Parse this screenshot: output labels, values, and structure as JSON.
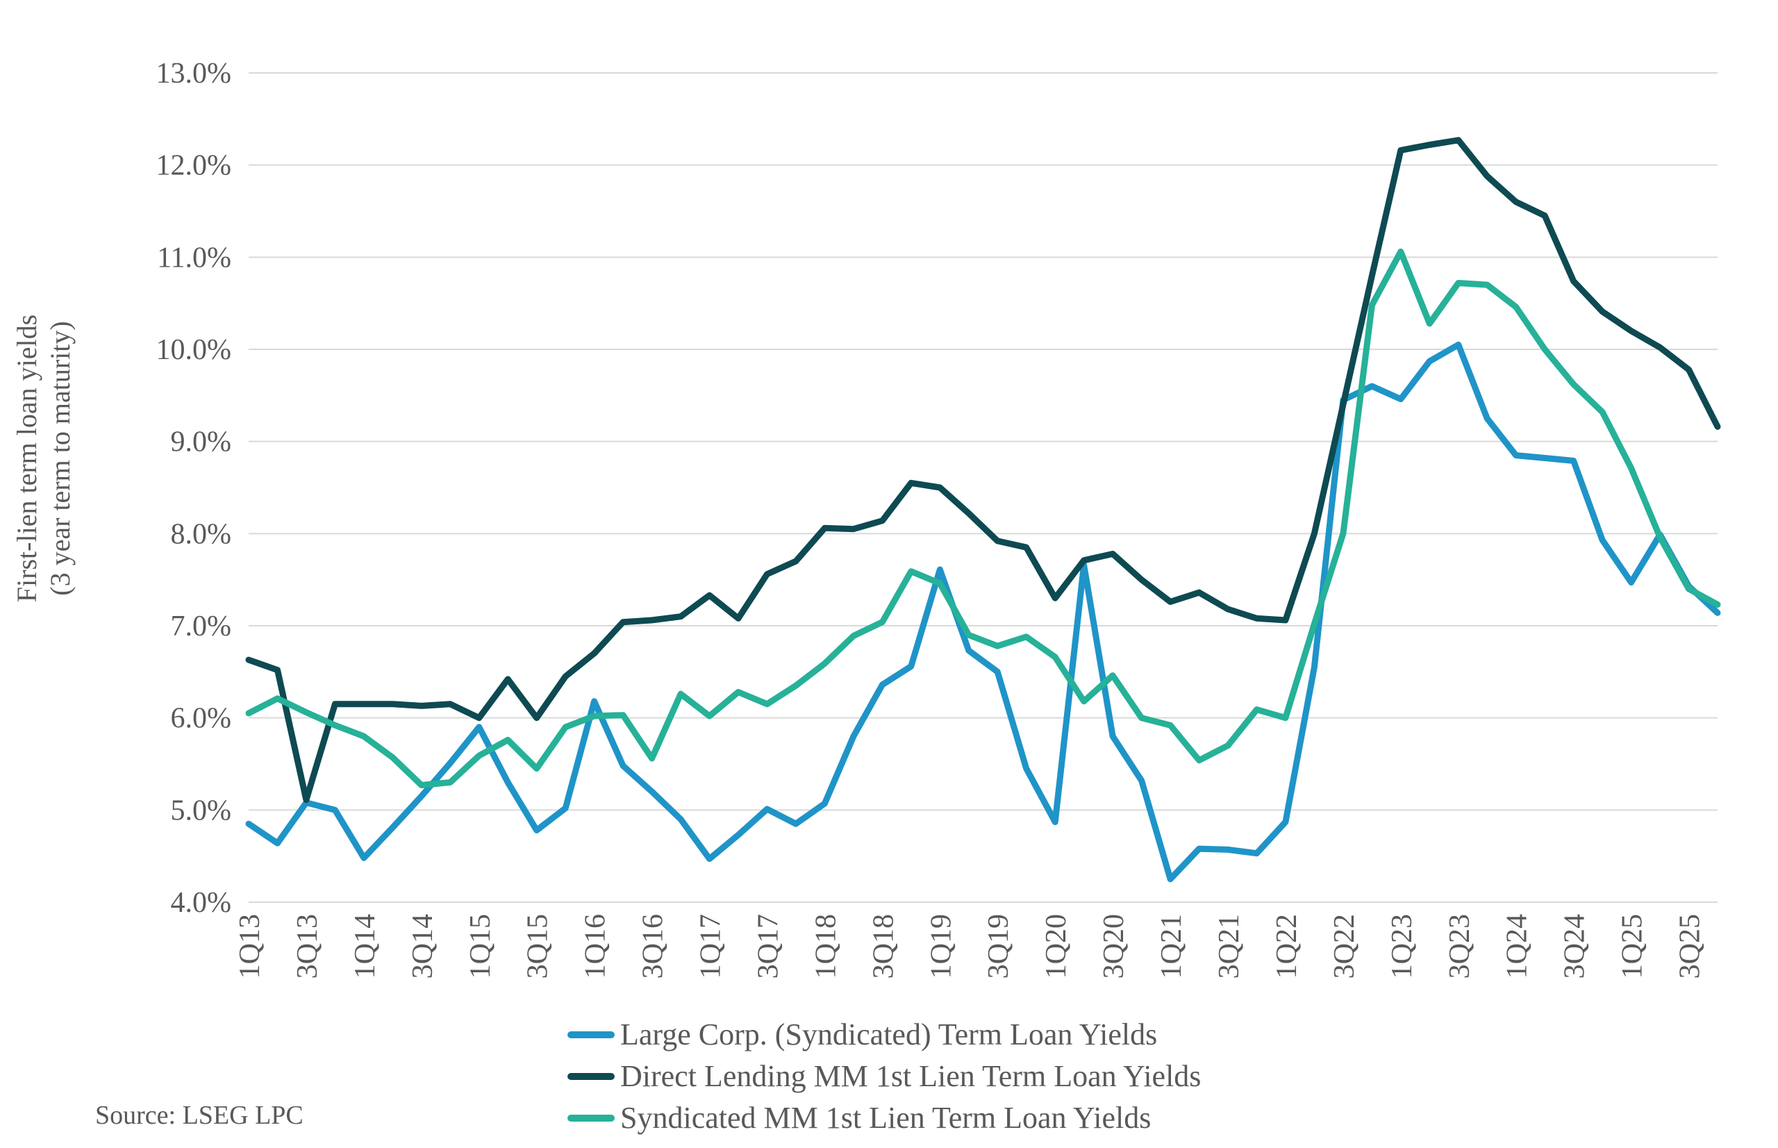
{
  "source_note": "Source:  LSEG LPC",
  "y_axis_title_line1": "First-lien term loan yields",
  "y_axis_title_line2": "(3 year term to maturity)",
  "colors": {
    "grid": "#d9d9d9",
    "text": "#595959",
    "background": "#ffffff"
  },
  "chart_data": {
    "type": "line",
    "title": "",
    "xlabel": "",
    "ylabel": "First-lien term loan yields (3 year term to maturity)",
    "ylim": [
      4.0,
      13.0
    ],
    "ytick_step": 1.0,
    "ytick_labels": [
      "4.0%",
      "5.0%",
      "6.0%",
      "7.0%",
      "8.0%",
      "9.0%",
      "10.0%",
      "11.0%",
      "12.0%",
      "13.0%"
    ],
    "grid": "horizontal",
    "legend_position": "bottom",
    "categories": [
      "1Q13",
      "2Q13",
      "3Q13",
      "4Q13",
      "1Q14",
      "2Q14",
      "3Q14",
      "4Q14",
      "1Q15",
      "2Q15",
      "3Q15",
      "4Q15",
      "1Q16",
      "2Q16",
      "3Q16",
      "4Q16",
      "1Q17",
      "2Q17",
      "3Q17",
      "4Q17",
      "1Q18",
      "2Q18",
      "3Q18",
      "4Q18",
      "1Q19",
      "2Q19",
      "3Q19",
      "4Q19",
      "1Q20",
      "2Q20",
      "3Q20",
      "4Q20",
      "1Q21",
      "2Q21",
      "3Q21",
      "4Q21",
      "1Q22",
      "2Q22",
      "3Q22",
      "4Q22",
      "1Q23",
      "2Q23",
      "3Q23",
      "4Q23",
      "1Q24",
      "2Q24",
      "3Q24",
      "4Q24",
      "1Q25",
      "2Q25",
      "3Q25",
      "4Q25"
    ],
    "xtick_shown_every": 2,
    "series": [
      {
        "name": "Large Corp. (Syndicated) Term Loan Yields",
        "color": "#1f94c8",
        "values": [
          4.85,
          4.64,
          5.08,
          5.0,
          4.48,
          4.81,
          5.15,
          5.51,
          5.9,
          5.3,
          4.78,
          5.02,
          6.18,
          5.48,
          5.2,
          4.9,
          4.47,
          4.73,
          5.01,
          4.85,
          5.07,
          5.8,
          6.36,
          6.56,
          7.61,
          6.73,
          6.5,
          5.45,
          4.87,
          7.66,
          5.8,
          5.32,
          4.25,
          4.58,
          4.57,
          4.53,
          4.87,
          6.55,
          9.45,
          9.6,
          9.46,
          9.87,
          10.05,
          9.25,
          8.85,
          8.82,
          8.79,
          7.93,
          7.47,
          7.99,
          7.43,
          7.14
        ]
      },
      {
        "name": "Direct Lending MM 1st Lien Term Loan Yields",
        "color": "#0e4a52",
        "values": [
          6.63,
          6.52,
          5.11,
          6.15,
          6.15,
          6.15,
          6.13,
          6.15,
          6.0,
          6.42,
          6.0,
          6.45,
          6.7,
          7.04,
          7.06,
          7.1,
          7.33,
          7.08,
          7.56,
          7.7,
          8.06,
          8.05,
          8.14,
          8.55,
          8.5,
          8.22,
          7.92,
          7.85,
          7.3,
          7.71,
          7.78,
          7.5,
          7.26,
          7.36,
          7.18,
          7.08,
          7.06,
          8.0,
          9.4,
          10.8,
          12.16,
          12.22,
          12.27,
          11.88,
          11.6,
          11.45,
          10.74,
          10.41,
          10.2,
          10.02,
          9.78,
          9.16
        ]
      },
      {
        "name": "Syndicated MM 1st Lien Term Loan Yields",
        "color": "#26b198",
        "values": [
          6.05,
          6.21,
          6.06,
          5.92,
          5.8,
          5.57,
          5.27,
          5.3,
          5.59,
          5.76,
          5.45,
          5.9,
          6.02,
          6.03,
          5.56,
          6.26,
          6.02,
          6.28,
          6.15,
          6.35,
          6.59,
          6.89,
          7.04,
          7.59,
          7.46,
          6.9,
          6.78,
          6.88,
          6.66,
          6.18,
          6.46,
          6.0,
          5.92,
          5.54,
          5.7,
          6.09,
          6.0,
          7.02,
          8.0,
          10.48,
          11.06,
          10.28,
          10.72,
          10.7,
          10.46,
          10.0,
          9.62,
          9.32,
          8.71,
          7.96,
          7.4,
          7.23
        ]
      }
    ]
  }
}
